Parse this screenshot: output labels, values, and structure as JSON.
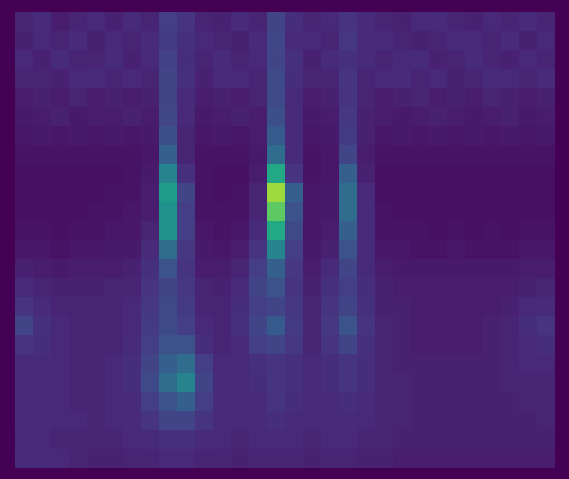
{
  "chart_data": {
    "type": "heatmap",
    "color": "viridis",
    "color_range": [
      0,
      1
    ],
    "tick_labels": false,
    "cells": [
      [
        0.1,
        0.12,
        0.08,
        0.1,
        0.11,
        0.09,
        0.12,
        0.1,
        0.18,
        0.15,
        0.1,
        0.09,
        0.12,
        0.1,
        0.2,
        0.13,
        0.1,
        0.11,
        0.15,
        0.12,
        0.1,
        0.09,
        0.11,
        0.12,
        0.1,
        0.09,
        0.11,
        0.1,
        0.12,
        0.1
      ],
      [
        0.09,
        0.11,
        0.1,
        0.12,
        0.09,
        0.11,
        0.1,
        0.12,
        0.17,
        0.14,
        0.11,
        0.1,
        0.09,
        0.12,
        0.21,
        0.12,
        0.11,
        0.1,
        0.16,
        0.11,
        0.12,
        0.1,
        0.09,
        0.1,
        0.12,
        0.11,
        0.1,
        0.12,
        0.09,
        0.11
      ],
      [
        0.11,
        0.09,
        0.12,
        0.1,
        0.1,
        0.12,
        0.09,
        0.11,
        0.19,
        0.13,
        0.1,
        0.12,
        0.1,
        0.11,
        0.2,
        0.14,
        0.09,
        0.12,
        0.14,
        0.12,
        0.1,
        0.11,
        0.12,
        0.09,
        0.1,
        0.12,
        0.1,
        0.09,
        0.11,
        0.1
      ],
      [
        0.1,
        0.1,
        0.09,
        0.11,
        0.12,
        0.1,
        0.11,
        0.1,
        0.2,
        0.14,
        0.09,
        0.11,
        0.11,
        0.1,
        0.22,
        0.13,
        0.1,
        0.1,
        0.15,
        0.1,
        0.11,
        0.12,
        0.1,
        0.11,
        0.09,
        0.1,
        0.12,
        0.11,
        0.1,
        0.12
      ],
      [
        0.08,
        0.09,
        0.08,
        0.1,
        0.08,
        0.09,
        0.08,
        0.09,
        0.2,
        0.12,
        0.08,
        0.09,
        0.08,
        0.1,
        0.22,
        0.12,
        0.08,
        0.09,
        0.15,
        0.1,
        0.08,
        0.09,
        0.1,
        0.08,
        0.09,
        0.08,
        0.1,
        0.09,
        0.08,
        0.09
      ],
      [
        0.07,
        0.08,
        0.09,
        0.07,
        0.08,
        0.08,
        0.09,
        0.08,
        0.21,
        0.11,
        0.07,
        0.08,
        0.09,
        0.08,
        0.24,
        0.12,
        0.07,
        0.08,
        0.16,
        0.09,
        0.08,
        0.07,
        0.08,
        0.09,
        0.08,
        0.07,
        0.08,
        0.09,
        0.07,
        0.08
      ],
      [
        0.06,
        0.07,
        0.06,
        0.07,
        0.06,
        0.07,
        0.06,
        0.07,
        0.24,
        0.1,
        0.06,
        0.07,
        0.06,
        0.08,
        0.28,
        0.12,
        0.06,
        0.07,
        0.17,
        0.09,
        0.06,
        0.07,
        0.06,
        0.07,
        0.06,
        0.07,
        0.06,
        0.07,
        0.06,
        0.07
      ],
      [
        0.05,
        0.05,
        0.05,
        0.05,
        0.05,
        0.05,
        0.05,
        0.06,
        0.3,
        0.1,
        0.05,
        0.05,
        0.05,
        0.07,
        0.35,
        0.12,
        0.05,
        0.06,
        0.2,
        0.08,
        0.05,
        0.05,
        0.05,
        0.05,
        0.05,
        0.05,
        0.05,
        0.05,
        0.05,
        0.05
      ],
      [
        0.04,
        0.04,
        0.04,
        0.04,
        0.04,
        0.04,
        0.05,
        0.07,
        0.45,
        0.14,
        0.05,
        0.04,
        0.04,
        0.08,
        0.6,
        0.15,
        0.05,
        0.06,
        0.3,
        0.09,
        0.04,
        0.04,
        0.04,
        0.04,
        0.04,
        0.04,
        0.04,
        0.04,
        0.04,
        0.04
      ],
      [
        0.04,
        0.04,
        0.04,
        0.04,
        0.04,
        0.05,
        0.05,
        0.08,
        0.55,
        0.2,
        0.05,
        0.04,
        0.05,
        0.1,
        0.85,
        0.3,
        0.06,
        0.07,
        0.35,
        0.12,
        0.04,
        0.04,
        0.04,
        0.04,
        0.04,
        0.04,
        0.04,
        0.04,
        0.04,
        0.04
      ],
      [
        0.04,
        0.04,
        0.04,
        0.04,
        0.05,
        0.05,
        0.06,
        0.08,
        0.5,
        0.18,
        0.05,
        0.05,
        0.05,
        0.1,
        0.75,
        0.25,
        0.06,
        0.07,
        0.35,
        0.12,
        0.05,
        0.04,
        0.04,
        0.04,
        0.04,
        0.04,
        0.04,
        0.04,
        0.04,
        0.04
      ],
      [
        0.05,
        0.05,
        0.04,
        0.05,
        0.05,
        0.06,
        0.06,
        0.1,
        0.5,
        0.18,
        0.06,
        0.05,
        0.06,
        0.12,
        0.6,
        0.22,
        0.06,
        0.08,
        0.3,
        0.12,
        0.05,
        0.05,
        0.05,
        0.04,
        0.05,
        0.04,
        0.05,
        0.04,
        0.05,
        0.05
      ],
      [
        0.06,
        0.06,
        0.05,
        0.06,
        0.06,
        0.07,
        0.07,
        0.12,
        0.35,
        0.16,
        0.07,
        0.06,
        0.08,
        0.15,
        0.45,
        0.18,
        0.07,
        0.09,
        0.25,
        0.12,
        0.06,
        0.06,
        0.05,
        0.05,
        0.06,
        0.05,
        0.05,
        0.05,
        0.06,
        0.06
      ],
      [
        0.09,
        0.08,
        0.07,
        0.08,
        0.08,
        0.08,
        0.09,
        0.14,
        0.25,
        0.15,
        0.08,
        0.08,
        0.1,
        0.18,
        0.3,
        0.16,
        0.08,
        0.12,
        0.2,
        0.12,
        0.08,
        0.07,
        0.07,
        0.07,
        0.07,
        0.07,
        0.07,
        0.07,
        0.08,
        0.08
      ],
      [
        0.12,
        0.1,
        0.09,
        0.09,
        0.09,
        0.1,
        0.1,
        0.15,
        0.2,
        0.16,
        0.1,
        0.09,
        0.12,
        0.2,
        0.25,
        0.15,
        0.09,
        0.14,
        0.18,
        0.13,
        0.09,
        0.08,
        0.08,
        0.08,
        0.08,
        0.08,
        0.08,
        0.08,
        0.09,
        0.1
      ],
      [
        0.15,
        0.12,
        0.1,
        0.1,
        0.1,
        0.1,
        0.11,
        0.16,
        0.22,
        0.17,
        0.1,
        0.1,
        0.13,
        0.18,
        0.2,
        0.16,
        0.1,
        0.15,
        0.2,
        0.14,
        0.09,
        0.09,
        0.08,
        0.08,
        0.08,
        0.08,
        0.08,
        0.09,
        0.11,
        0.12
      ],
      [
        0.2,
        0.14,
        0.11,
        0.1,
        0.1,
        0.1,
        0.11,
        0.17,
        0.22,
        0.18,
        0.11,
        0.1,
        0.14,
        0.2,
        0.28,
        0.17,
        0.1,
        0.16,
        0.25,
        0.15,
        0.1,
        0.09,
        0.08,
        0.08,
        0.08,
        0.08,
        0.09,
        0.1,
        0.13,
        0.15
      ],
      [
        0.15,
        0.13,
        0.11,
        0.1,
        0.1,
        0.1,
        0.12,
        0.18,
        0.25,
        0.25,
        0.13,
        0.1,
        0.12,
        0.18,
        0.2,
        0.16,
        0.1,
        0.15,
        0.2,
        0.14,
        0.1,
        0.09,
        0.08,
        0.08,
        0.08,
        0.08,
        0.09,
        0.1,
        0.12,
        0.13
      ],
      [
        0.12,
        0.12,
        0.11,
        0.1,
        0.1,
        0.11,
        0.13,
        0.2,
        0.3,
        0.35,
        0.18,
        0.11,
        0.11,
        0.14,
        0.15,
        0.14,
        0.11,
        0.13,
        0.15,
        0.13,
        0.1,
        0.09,
        0.09,
        0.09,
        0.09,
        0.09,
        0.09,
        0.1,
        0.11,
        0.11
      ],
      [
        0.12,
        0.11,
        0.11,
        0.1,
        0.1,
        0.11,
        0.13,
        0.22,
        0.35,
        0.45,
        0.2,
        0.12,
        0.11,
        0.13,
        0.15,
        0.14,
        0.11,
        0.13,
        0.15,
        0.13,
        0.1,
        0.1,
        0.09,
        0.09,
        0.09,
        0.09,
        0.09,
        0.1,
        0.1,
        0.1
      ],
      [
        0.12,
        0.11,
        0.11,
        0.1,
        0.1,
        0.11,
        0.12,
        0.18,
        0.25,
        0.3,
        0.18,
        0.12,
        0.11,
        0.12,
        0.15,
        0.13,
        0.11,
        0.12,
        0.13,
        0.12,
        0.1,
        0.1,
        0.09,
        0.09,
        0.09,
        0.09,
        0.09,
        0.09,
        0.1,
        0.1
      ],
      [
        0.12,
        0.12,
        0.11,
        0.11,
        0.1,
        0.11,
        0.12,
        0.15,
        0.2,
        0.2,
        0.15,
        0.12,
        0.11,
        0.12,
        0.13,
        0.12,
        0.11,
        0.12,
        0.12,
        0.11,
        0.1,
        0.1,
        0.09,
        0.09,
        0.09,
        0.09,
        0.09,
        0.09,
        0.09,
        0.1
      ],
      [
        0.11,
        0.11,
        0.1,
        0.1,
        0.1,
        0.1,
        0.11,
        0.12,
        0.14,
        0.14,
        0.12,
        0.11,
        0.1,
        0.11,
        0.11,
        0.11,
        0.1,
        0.11,
        0.11,
        0.1,
        0.1,
        0.09,
        0.09,
        0.09,
        0.09,
        0.09,
        0.09,
        0.09,
        0.09,
        0.09
      ],
      [
        0.12,
        0.12,
        0.11,
        0.1,
        0.09,
        0.09,
        0.1,
        0.1,
        0.11,
        0.11,
        0.1,
        0.1,
        0.09,
        0.1,
        0.1,
        0.1,
        0.09,
        0.1,
        0.1,
        0.09,
        0.09,
        0.08,
        0.08,
        0.08,
        0.08,
        0.08,
        0.08,
        0.08,
        0.08,
        0.08
      ]
    ]
  }
}
